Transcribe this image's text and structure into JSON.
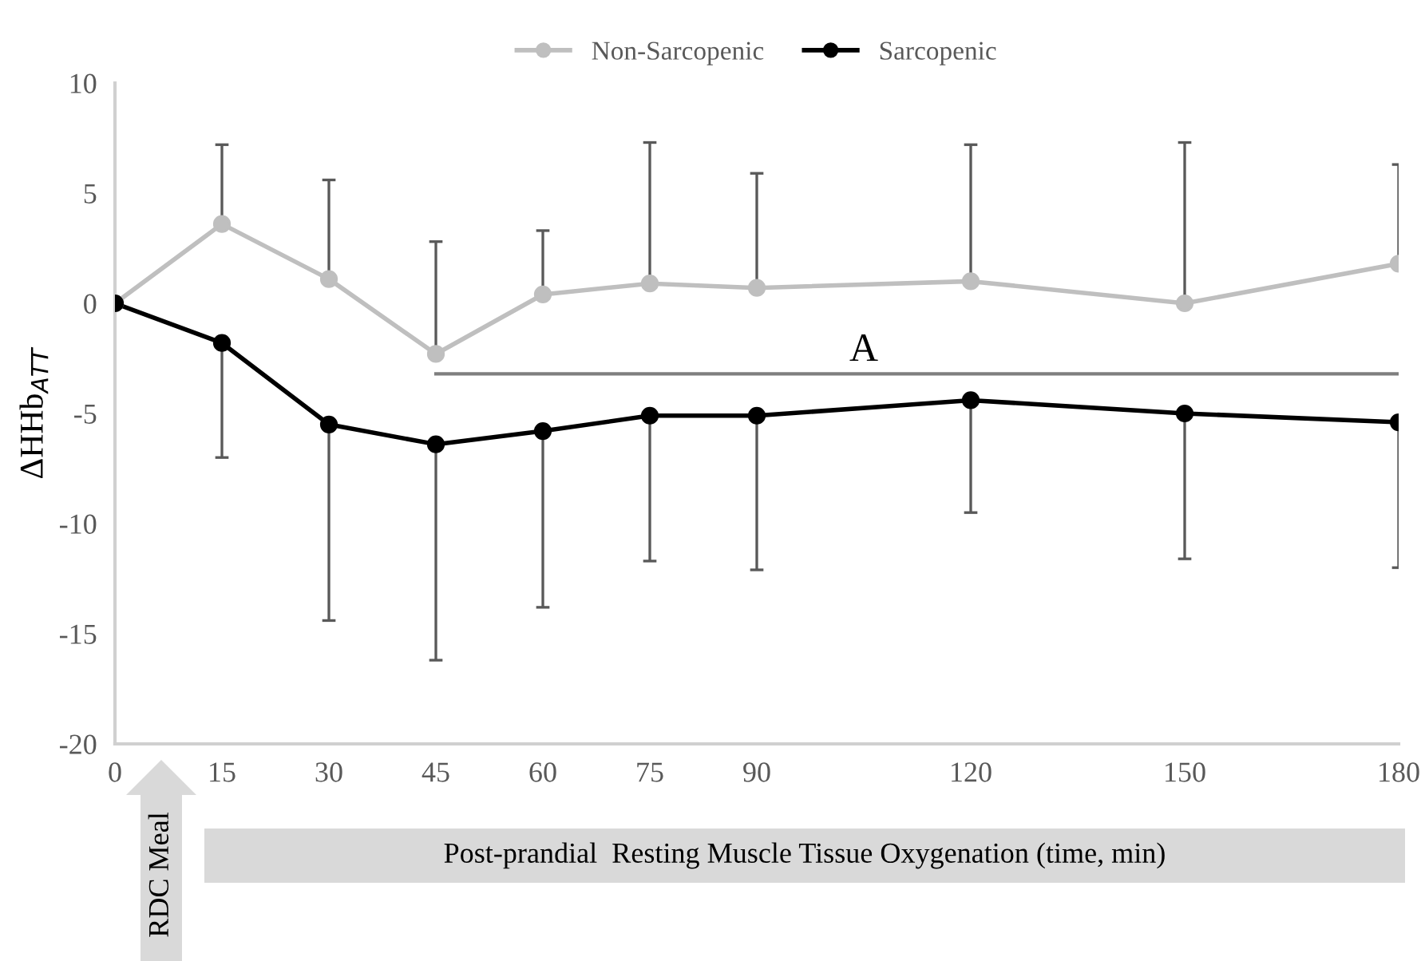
{
  "chart_data": {
    "type": "line",
    "ylabel": "ΔHHb$_{ATT}$",
    "xlabel": "Post-prandial  Resting Muscle Tissue Oxygenation (time, min)",
    "x": [
      0,
      15,
      30,
      45,
      60,
      75,
      90,
      120,
      150,
      180
    ],
    "xlim": [
      0,
      180
    ],
    "xticks": [
      0,
      15,
      30,
      45,
      60,
      75,
      90,
      120,
      150,
      180
    ],
    "ylim": [
      -20,
      10
    ],
    "yticks": [
      -20,
      -15,
      -10,
      -5,
      0,
      5,
      10
    ],
    "series": [
      {
        "name": "Non-Sarcopenic",
        "color": "#bfbfbf",
        "values": [
          0,
          3.6,
          1.1,
          -2.3,
          0.4,
          0.9,
          0.7,
          1.0,
          0.0,
          1.8
        ],
        "errors": [
          null,
          [
            3.6,
            7.2
          ],
          [
            1.1,
            5.6
          ],
          [
            -2.3,
            2.8
          ],
          [
            0.4,
            3.3
          ],
          [
            0.9,
            7.3
          ],
          [
            0.7,
            5.9
          ],
          [
            1.0,
            7.2
          ],
          [
            0.0,
            7.3
          ],
          [
            1.8,
            6.3
          ]
        ]
      },
      {
        "name": "Sarcopenic",
        "color": "#000000",
        "values": [
          0,
          -1.8,
          -5.5,
          -6.4,
          -5.8,
          -5.1,
          -5.1,
          -4.4,
          -5.0,
          -5.4
        ],
        "errors": [
          null,
          [
            -7.0,
            -1.8
          ],
          [
            -14.4,
            -5.5
          ],
          [
            -16.2,
            -6.4
          ],
          [
            -13.8,
            -5.8
          ],
          [
            -11.7,
            -5.1
          ],
          [
            -12.1,
            -5.1
          ],
          [
            -9.5,
            -4.4
          ],
          [
            -11.6,
            -5.0
          ],
          [
            -12.0,
            -5.4
          ]
        ]
      },
      {
        "type": "line",
        "color": "#7f7f7f",
        "x": [
          45,
          180
        ],
        "values": [
          -3.2,
          -3.2
        ],
        "marker": "none"
      }
    ],
    "annotations": [
      {
        "text": "A",
        "x": 105,
        "y": -3.2
      },
      "RDC Meal"
    ],
    "marker": "circle",
    "legend": "top",
    "grid": false
  }
}
